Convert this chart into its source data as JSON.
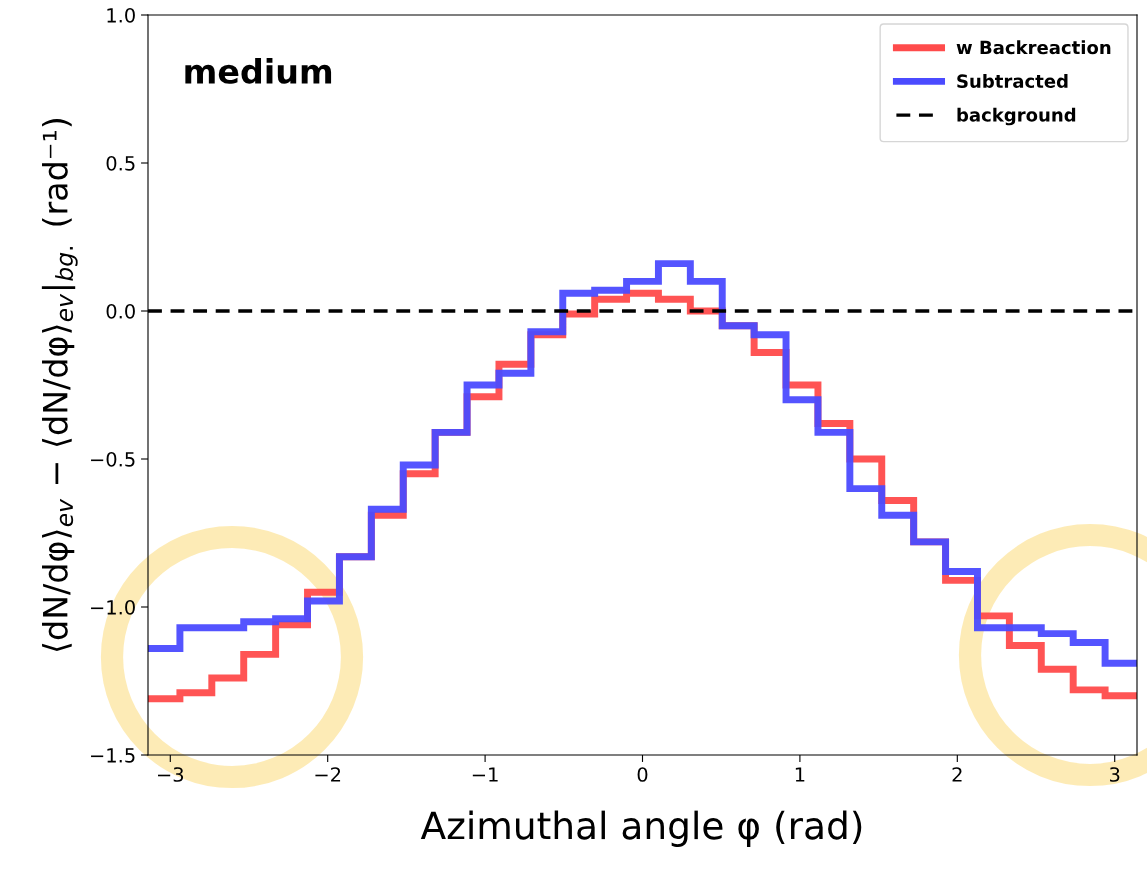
{
  "chart_data": {
    "type": "histogram",
    "xlabel": "Azimuthal angle φ (rad)",
    "ylabel": "⟨dN/dφ⟩$_{ev}$ − ⟨dN/dφ⟩$_{ev}$|$_{bg.}$ (rad⁻¹)",
    "annotations": [
      "medium"
    ],
    "bins": [
      -3.1416,
      -2.9389,
      -2.7362,
      -2.5335,
      -2.3308,
      -2.1281,
      -1.9254,
      -1.7227,
      -1.52,
      -1.3173,
      -1.1146,
      -0.9119,
      -0.7092,
      -0.5066,
      -0.3039,
      -0.1012,
      0.1012,
      0.3039,
      0.5066,
      0.7092,
      0.9119,
      1.1146,
      1.3173,
      1.52,
      1.7227,
      1.9254,
      2.1281,
      2.3308,
      2.5335,
      2.7362,
      2.9389,
      3.1416
    ],
    "series": [
      {
        "name": "w Backreaction",
        "color": "#ff4b4b",
        "values": [
          -1.31,
          -1.29,
          -1.24,
          -1.16,
          -1.06,
          -0.95,
          -0.83,
          -0.69,
          -0.55,
          -0.41,
          -0.29,
          -0.18,
          -0.08,
          -0.01,
          0.04,
          0.06,
          0.04,
          0.0,
          -0.05,
          -0.14,
          -0.25,
          -0.38,
          -0.5,
          -0.64,
          -0.78,
          -0.91,
          -1.03,
          -1.13,
          -1.21,
          -1.28,
          -1.3
        ]
      },
      {
        "name": "Subtracted",
        "color": "#4b4bff",
        "values": [
          -1.14,
          -1.07,
          -1.07,
          -1.05,
          -1.04,
          -0.98,
          -0.83,
          -0.67,
          -0.52,
          -0.41,
          -0.25,
          -0.21,
          -0.07,
          0.06,
          0.07,
          0.1,
          0.16,
          0.1,
          -0.05,
          -0.08,
          -0.3,
          -0.41,
          -0.6,
          -0.69,
          -0.78,
          -0.88,
          -1.07,
          -1.07,
          -1.09,
          -1.12,
          -1.19
        ]
      }
    ],
    "ref_lines": [
      {
        "axis": "y",
        "value": 0,
        "label": "background",
        "color": "#000000",
        "line_style": "dashed"
      }
    ],
    "xlim": [
      -3.1416,
      3.1416
    ],
    "xticks": [
      {
        "value": -3,
        "label": "−3"
      },
      {
        "value": -2,
        "label": "−2"
      },
      {
        "value": -1,
        "label": "−1"
      },
      0,
      1,
      2,
      3
    ],
    "ylim": [
      -1.5,
      1.0
    ],
    "yticks": [
      {
        "value": -1.5,
        "label": "−1.5"
      },
      {
        "value": -1.0,
        "label": "−1.0"
      },
      {
        "value": -0.5,
        "label": "−0.5"
      },
      {
        "value": 0.0,
        "label": "0.0"
      },
      {
        "value": 0.5,
        "label": "0.5"
      },
      {
        "value": 1.0,
        "label": "1.0"
      }
    ],
    "legend": "top right",
    "grid": false
  }
}
